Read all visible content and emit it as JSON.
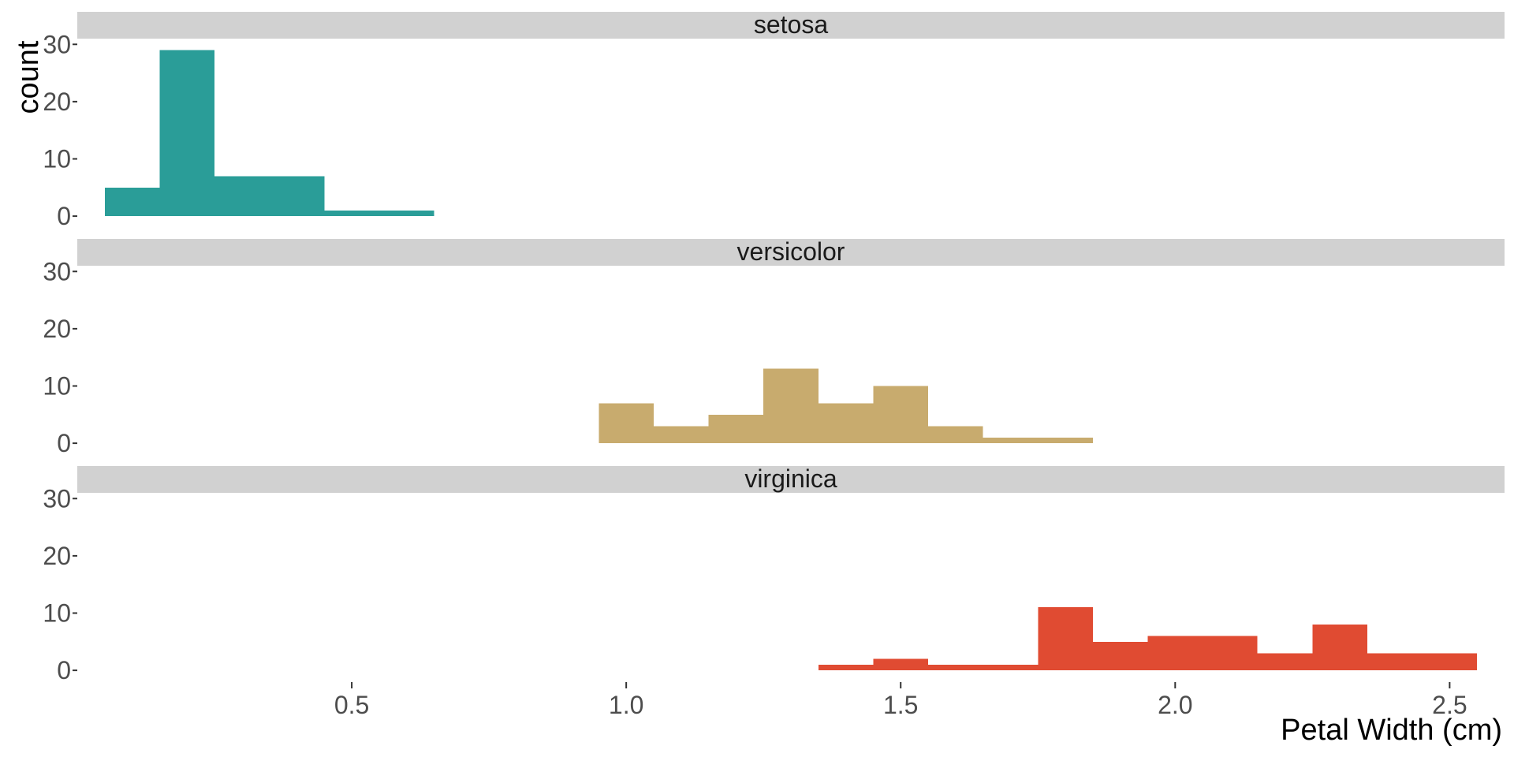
{
  "chart_data": {
    "type": "bar",
    "xlabel": "Petal Width (cm)",
    "ylabel": "count",
    "x_ticks": [
      0.5,
      1.0,
      1.5,
      2.0,
      2.5
    ],
    "x_tick_labels": [
      "0.5",
      "1.0",
      "1.5",
      "2.0",
      "2.5"
    ],
    "xlim": [
      0.0,
      2.6
    ],
    "y_ticks": [
      0,
      10,
      20,
      30
    ],
    "y_tick_labels": [
      "0",
      "10",
      "20",
      "30"
    ],
    "ylim": [
      -1.5,
      31
    ],
    "bin_width": 0.1,
    "grid": false,
    "legend": "none",
    "panels": [
      {
        "name": "setosa",
        "color": "#2A9D98",
        "bins": [
          {
            "x0": 0.05,
            "x1": 0.15,
            "count": 5
          },
          {
            "x0": 0.15,
            "x1": 0.25,
            "count": 29
          },
          {
            "x0": 0.25,
            "x1": 0.35,
            "count": 7
          },
          {
            "x0": 0.35,
            "x1": 0.45,
            "count": 7
          },
          {
            "x0": 0.45,
            "x1": 0.55,
            "count": 1
          },
          {
            "x0": 0.55,
            "x1": 0.65,
            "count": 1
          }
        ]
      },
      {
        "name": "versicolor",
        "color": "#C8AB6E",
        "bins": [
          {
            "x0": 0.95,
            "x1": 1.05,
            "count": 7
          },
          {
            "x0": 1.05,
            "x1": 1.15,
            "count": 3
          },
          {
            "x0": 1.15,
            "x1": 1.25,
            "count": 5
          },
          {
            "x0": 1.25,
            "x1": 1.35,
            "count": 13
          },
          {
            "x0": 1.35,
            "x1": 1.45,
            "count": 7
          },
          {
            "x0": 1.45,
            "x1": 1.55,
            "count": 10
          },
          {
            "x0": 1.55,
            "x1": 1.65,
            "count": 3
          },
          {
            "x0": 1.65,
            "x1": 1.75,
            "count": 1
          },
          {
            "x0": 1.75,
            "x1": 1.85,
            "count": 1
          }
        ]
      },
      {
        "name": "virginica",
        "color": "#E04B32",
        "bins": [
          {
            "x0": 1.35,
            "x1": 1.45,
            "count": 1
          },
          {
            "x0": 1.45,
            "x1": 1.55,
            "count": 2
          },
          {
            "x0": 1.55,
            "x1": 1.65,
            "count": 1
          },
          {
            "x0": 1.65,
            "x1": 1.75,
            "count": 1
          },
          {
            "x0": 1.75,
            "x1": 1.85,
            "count": 11
          },
          {
            "x0": 1.85,
            "x1": 1.95,
            "count": 5
          },
          {
            "x0": 1.95,
            "x1": 2.05,
            "count": 6
          },
          {
            "x0": 2.05,
            "x1": 2.15,
            "count": 6
          },
          {
            "x0": 2.15,
            "x1": 2.25,
            "count": 3
          },
          {
            "x0": 2.25,
            "x1": 2.35,
            "count": 8
          },
          {
            "x0": 2.35,
            "x1": 2.45,
            "count": 3
          },
          {
            "x0": 2.45,
            "x1": 2.55,
            "count": 3
          }
        ]
      }
    ]
  }
}
